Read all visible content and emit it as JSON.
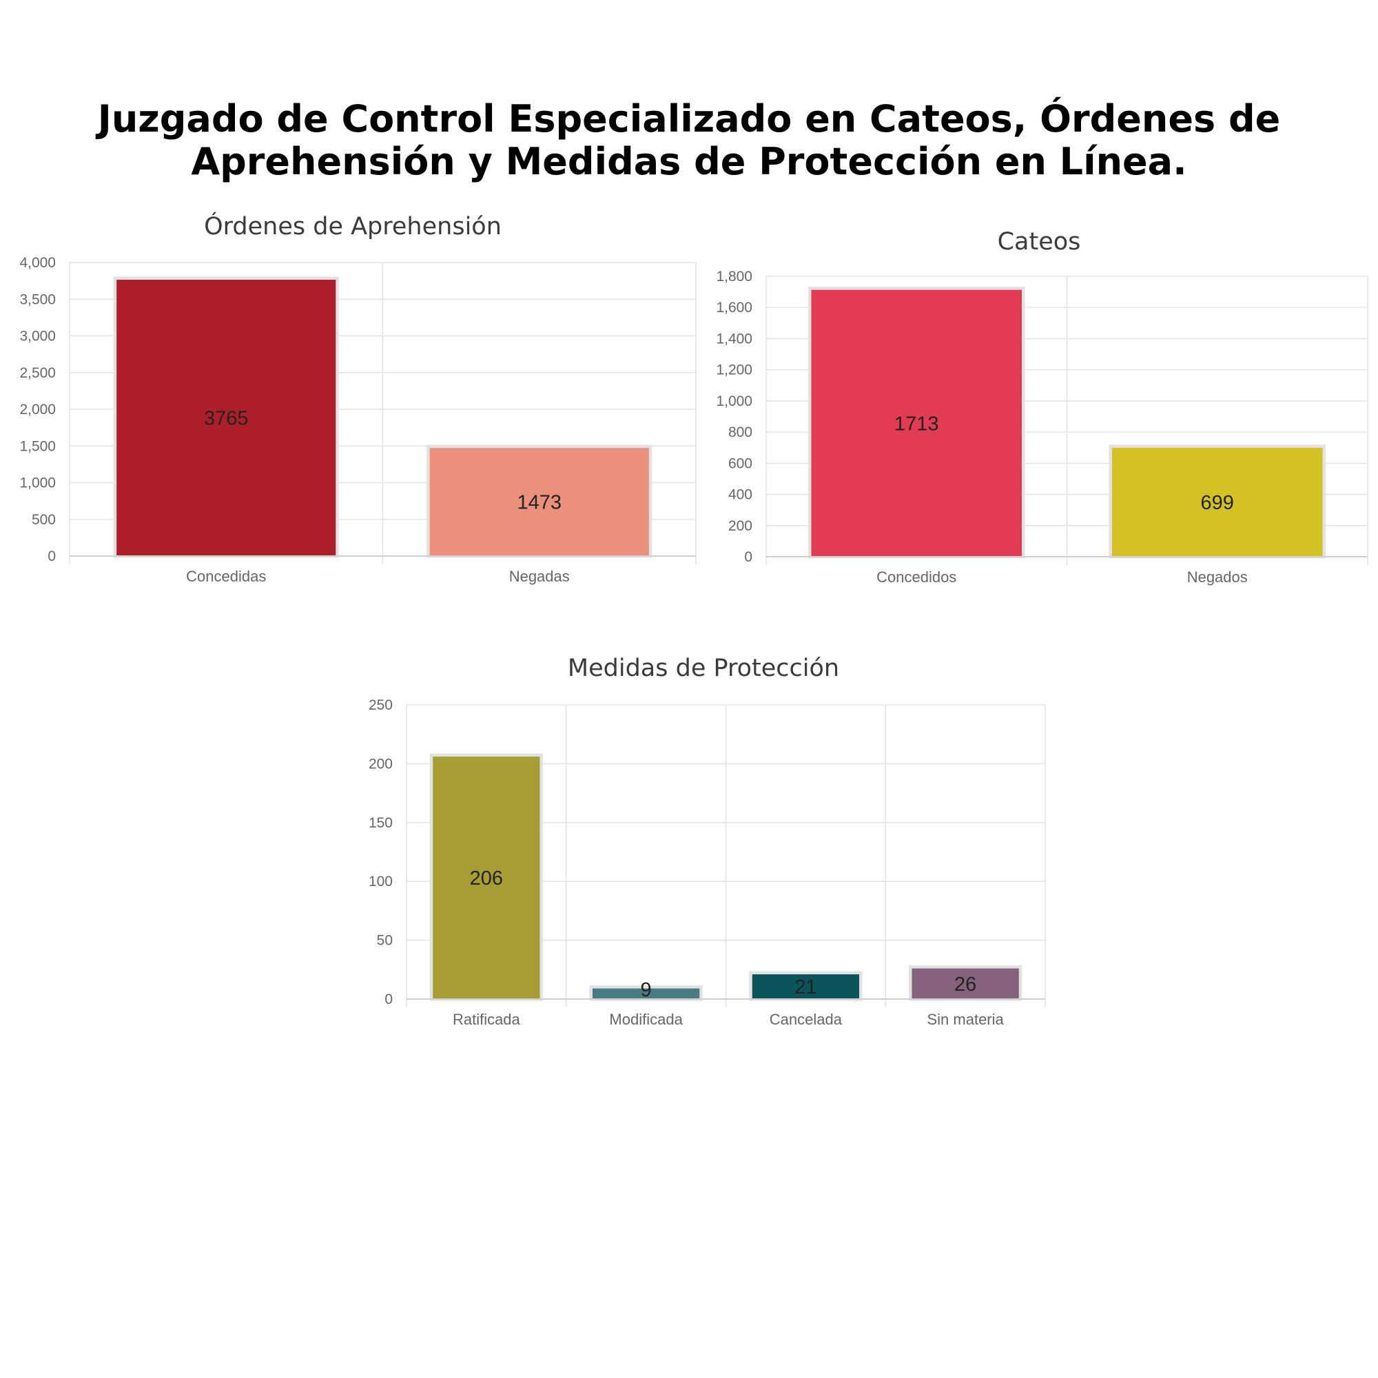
{
  "page": {
    "title_line1": "Juzgado de Control Especializado en Cateos, Órdenes de",
    "title_line2": "Aprehensión y Medidas de Protección en Línea."
  },
  "chart_data": [
    {
      "type": "bar",
      "title": "Órdenes de Aprehensión",
      "categories": [
        "Concedidas",
        "Negadas"
      ],
      "values": [
        3765,
        1473
      ],
      "colors": [
        "#ad1e2b",
        "#ec907e"
      ],
      "ylim": [
        0,
        4000
      ],
      "yticks": [
        "0",
        "500",
        "1,000",
        "1,500",
        "2,000",
        "2,500",
        "3,000",
        "3,500",
        "4,000"
      ],
      "data_labels": [
        "3765",
        "1473"
      ],
      "grid": true,
      "legend": "none"
    },
    {
      "type": "bar",
      "title": "Cateos",
      "categories": [
        "Concedidos",
        "Negados"
      ],
      "values": [
        1713,
        699
      ],
      "colors": [
        "#e13c53",
        "#d4c224"
      ],
      "ylim": [
        0,
        1800
      ],
      "yticks": [
        "0",
        "200",
        "400",
        "600",
        "800",
        "1,000",
        "1,200",
        "1,400",
        "1,600",
        "1,800"
      ],
      "data_labels": [
        "1713",
        "699"
      ],
      "grid": true,
      "legend": "none"
    },
    {
      "type": "bar",
      "title": "Medidas de Protección",
      "categories": [
        "Ratificada",
        "Modificada",
        "Cancelada",
        "Sin materia"
      ],
      "values": [
        206,
        9,
        21,
        26
      ],
      "colors": [
        "#a89c35",
        "#4a7b80",
        "#0b5459",
        "#85627b"
      ],
      "ylim": [
        0,
        250
      ],
      "yticks": [
        "0",
        "50",
        "100",
        "150",
        "200",
        "250"
      ],
      "data_labels": [
        "206",
        "9",
        "21",
        "26"
      ],
      "grid": true,
      "legend": "none"
    }
  ]
}
